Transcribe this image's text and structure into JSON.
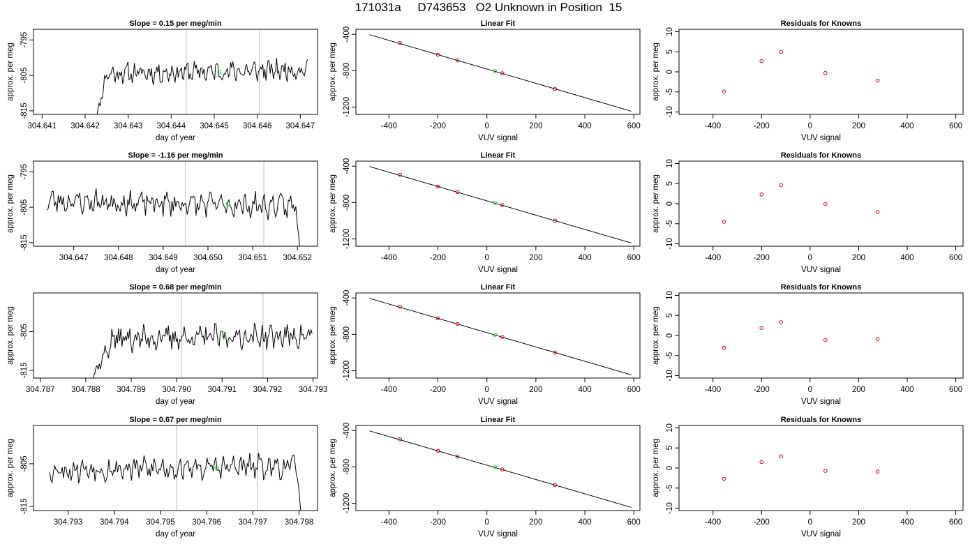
{
  "title": "171031a     D743653   O2 Unknown in Position  15",
  "colors": {
    "trace": "#000000",
    "marker": "#00dd00",
    "known": "#dd0000",
    "vline": "#c8c8c8",
    "fit": "#000000"
  },
  "chart_data": [
    {
      "type": "line",
      "panel": "time-series",
      "row": 0,
      "title": "Slope =  0.15  per meg/min",
      "xlabel": "day of year",
      "ylabel": "approx. per meg",
      "xlim": [
        304.6408,
        304.6474
      ],
      "ylim": [
        -816,
        -792
      ],
      "xticks": [
        {
          "v": 304.641,
          "label": "304.641"
        },
        {
          "v": 304.642,
          "label": "304.642"
        },
        {
          "v": 304.643,
          "label": "304.643"
        },
        {
          "v": 304.644,
          "label": "304.644"
        },
        {
          "v": 304.645,
          "label": "304.645"
        },
        {
          "v": 304.646,
          "label": "304.646"
        },
        {
          "v": 304.647,
          "label": "304.647"
        }
      ],
      "yticks": [
        {
          "v": -795,
          "label": "-795"
        },
        {
          "v": -805,
          "label": "-805"
        },
        {
          "v": -815,
          "label": "-815"
        }
      ],
      "vlines": [
        304.64435,
        304.64605
      ],
      "trace_start": 304.6422,
      "trace_end": 304.64717,
      "ramp_from": -820,
      "ramp_end": 304.6425,
      "base": -804.0,
      "amp": 2.2,
      "drift": 0.3,
      "seed": 11,
      "marker": {
        "x": 304.64512,
        "y": -804.1
      }
    },
    {
      "type": "scatter",
      "panel": "linear-fit",
      "row": 0,
      "title": "Linear Fit",
      "xlabel": "VUV signal",
      "ylabel": "approx. per meg",
      "xlim": [
        -535,
        625
      ],
      "ylim": [
        -1280,
        -345
      ],
      "xticks": [
        {
          "v": -400,
          "label": "-400"
        },
        {
          "v": -200,
          "label": "-200"
        },
        {
          "v": 0,
          "label": "0"
        },
        {
          "v": 200,
          "label": "200"
        },
        {
          "v": 400,
          "label": "400"
        },
        {
          "v": 600,
          "label": "600"
        }
      ],
      "yticks": [
        {
          "v": -400,
          "label": "-400"
        },
        {
          "v": -800,
          "label": "-800"
        },
        {
          "v": -1200,
          "label": "-1200"
        }
      ],
      "fit": {
        "x1": -480,
        "y1": -404,
        "x2": 590,
        "y2": -1245
      },
      "knowns": [
        {
          "x": -355,
          "y": -496
        },
        {
          "x": -200,
          "y": -624
        },
        {
          "x": -120,
          "y": -686
        },
        {
          "x": 63,
          "y": -828
        },
        {
          "x": 278,
          "y": -1000
        }
      ],
      "unknown": {
        "x": 33,
        "y": -805
      }
    },
    {
      "type": "scatter",
      "panel": "residuals",
      "row": 0,
      "title": "Residuals for Knowns",
      "xlabel": "VUV signal",
      "ylabel": "approx. per meg",
      "xlim": [
        -540,
        630
      ],
      "ylim": [
        -10.6,
        10.6
      ],
      "xticks": [
        {
          "v": -400,
          "label": "-400"
        },
        {
          "v": -200,
          "label": "-200"
        },
        {
          "v": 0,
          "label": "0"
        },
        {
          "v": 200,
          "label": "200"
        },
        {
          "v": 400,
          "label": "400"
        },
        {
          "v": 600,
          "label": "600"
        }
      ],
      "yticks": [
        {
          "v": -10,
          "label": "-10"
        },
        {
          "v": -5,
          "label": "-5"
        },
        {
          "v": 0,
          "label": "0"
        },
        {
          "v": 5,
          "label": "5"
        },
        {
          "v": 10,
          "label": "10"
        }
      ],
      "points": [
        {
          "x": -355,
          "y": -4.9
        },
        {
          "x": -200,
          "y": 2.7
        },
        {
          "x": -120,
          "y": 5.0
        },
        {
          "x": 63,
          "y": -0.3
        },
        {
          "x": 278,
          "y": -2.2
        }
      ]
    },
    {
      "type": "line",
      "panel": "time-series",
      "row": 1,
      "title": "Slope =  -1.16  per meg/min",
      "xlabel": "day of year",
      "ylabel": "approx. per meg",
      "xlim": [
        304.6461,
        304.65245
      ],
      "ylim": [
        -816,
        -792
      ],
      "xticks": [
        {
          "v": 304.647,
          "label": "304.647"
        },
        {
          "v": 304.648,
          "label": "304.648"
        },
        {
          "v": 304.649,
          "label": "304.649"
        },
        {
          "v": 304.65,
          "label": "304.650"
        },
        {
          "v": 304.651,
          "label": "304.651"
        },
        {
          "v": 304.652,
          "label": "304.652"
        }
      ],
      "yticks": [
        {
          "v": -795,
          "label": "-795"
        },
        {
          "v": -805,
          "label": "-805"
        },
        {
          "v": -815,
          "label": "-815"
        }
      ],
      "vlines": [
        304.6495,
        304.65125
      ],
      "trace_start": 304.6464,
      "trace_end": 304.65205,
      "ramp_from": null,
      "tail_to": -816,
      "base": -804.0,
      "amp": 2.6,
      "drift": -0.4,
      "seed": 23,
      "marker": {
        "x": 304.65045,
        "y": -804.0
      }
    },
    {
      "type": "scatter",
      "panel": "linear-fit",
      "row": 1,
      "title": "Linear Fit",
      "xlabel": "VUV signal",
      "ylabel": "approx. per meg",
      "xlim": [
        -535,
        625
      ],
      "ylim": [
        -1280,
        -345
      ],
      "xticks": [
        {
          "v": -400,
          "label": "-400"
        },
        {
          "v": -200,
          "label": "-200"
        },
        {
          "v": 0,
          "label": "0"
        },
        {
          "v": 200,
          "label": "200"
        },
        {
          "v": 400,
          "label": "400"
        },
        {
          "v": 600,
          "label": "600"
        }
      ],
      "yticks": [
        {
          "v": -400,
          "label": "-400"
        },
        {
          "v": -800,
          "label": "-800"
        },
        {
          "v": -1200,
          "label": "-1200"
        }
      ],
      "fit": {
        "x1": -480,
        "y1": -404,
        "x2": 590,
        "y2": -1245
      },
      "knowns": [
        {
          "x": -355,
          "y": -496
        },
        {
          "x": -200,
          "y": -624
        },
        {
          "x": -120,
          "y": -686
        },
        {
          "x": 63,
          "y": -828
        },
        {
          "x": 278,
          "y": -1000
        }
      ],
      "unknown": {
        "x": 33,
        "y": -805
      }
    },
    {
      "type": "scatter",
      "panel": "residuals",
      "row": 1,
      "title": "Residuals for Knowns",
      "xlabel": "VUV signal",
      "ylabel": "approx. per meg",
      "xlim": [
        -540,
        630
      ],
      "ylim": [
        -10.6,
        10.6
      ],
      "xticks": [
        {
          "v": -400,
          "label": "-400"
        },
        {
          "v": -200,
          "label": "-200"
        },
        {
          "v": 0,
          "label": "0"
        },
        {
          "v": 200,
          "label": "200"
        },
        {
          "v": 400,
          "label": "400"
        },
        {
          "v": 600,
          "label": "600"
        }
      ],
      "yticks": [
        {
          "v": -10,
          "label": "-10"
        },
        {
          "v": -5,
          "label": "-5"
        },
        {
          "v": 0,
          "label": "0"
        },
        {
          "v": 5,
          "label": "5"
        },
        {
          "v": 10,
          "label": "10"
        }
      ],
      "points": [
        {
          "x": -355,
          "y": -4.5
        },
        {
          "x": -200,
          "y": 2.3
        },
        {
          "x": -120,
          "y": 4.6
        },
        {
          "x": 63,
          "y": -0.1
        },
        {
          "x": 278,
          "y": -2.1
        }
      ]
    },
    {
      "type": "line",
      "panel": "time-series",
      "row": 2,
      "title": "Slope =  0.68  per meg/min",
      "xlabel": "day of year",
      "ylabel": "approx. per meg",
      "xlim": [
        304.78685,
        304.7931
      ],
      "ylim": [
        -817,
        -795
      ],
      "xticks": [
        {
          "v": 304.787,
          "label": "304.787"
        },
        {
          "v": 304.788,
          "label": "304.788"
        },
        {
          "v": 304.789,
          "label": "304.789"
        },
        {
          "v": 304.79,
          "label": "304.790"
        },
        {
          "v": 304.791,
          "label": "304.791"
        },
        {
          "v": 304.792,
          "label": "304.792"
        },
        {
          "v": 304.793,
          "label": "304.793"
        }
      ],
      "yticks": [
        {
          "v": -805,
          "label": "-805"
        },
        {
          "v": -815,
          "label": "-815"
        }
      ],
      "vlines": [
        304.7901,
        304.7919
      ],
      "trace_start": 304.788,
      "trace_end": 304.79298,
      "ramp_from": -820,
      "ramp_end": 304.7886,
      "base": -806.5,
      "amp": 2.4,
      "drift": 0.2,
      "seed": 37,
      "marker": {
        "x": 304.79105,
        "y": -806.2
      }
    },
    {
      "type": "scatter",
      "panel": "linear-fit",
      "row": 2,
      "title": "Linear Fit",
      "xlabel": "VUV signal",
      "ylabel": "approx. per meg",
      "xlim": [
        -535,
        625
      ],
      "ylim": [
        -1280,
        -345
      ],
      "xticks": [
        {
          "v": -400,
          "label": "-400"
        },
        {
          "v": -200,
          "label": "-200"
        },
        {
          "v": 0,
          "label": "0"
        },
        {
          "v": 200,
          "label": "200"
        },
        {
          "v": 400,
          "label": "400"
        },
        {
          "v": 600,
          "label": "600"
        }
      ],
      "yticks": [
        {
          "v": -400,
          "label": "-400"
        },
        {
          "v": -800,
          "label": "-800"
        },
        {
          "v": -1200,
          "label": "-1200"
        }
      ],
      "fit": {
        "x1": -480,
        "y1": -404,
        "x2": 590,
        "y2": -1245
      },
      "knowns": [
        {
          "x": -355,
          "y": -496
        },
        {
          "x": -200,
          "y": -624
        },
        {
          "x": -120,
          "y": -686
        },
        {
          "x": 63,
          "y": -828
        },
        {
          "x": 278,
          "y": -1000
        }
      ],
      "unknown": {
        "x": 33,
        "y": -805
      }
    },
    {
      "type": "scatter",
      "panel": "residuals",
      "row": 2,
      "title": "Residuals for Knowns",
      "xlabel": "VUV signal",
      "ylabel": "approx. per meg",
      "xlim": [
        -540,
        630
      ],
      "ylim": [
        -10.6,
        10.6
      ],
      "xticks": [
        {
          "v": -400,
          "label": "-400"
        },
        {
          "v": -200,
          "label": "-200"
        },
        {
          "v": 0,
          "label": "0"
        },
        {
          "v": 200,
          "label": "200"
        },
        {
          "v": 400,
          "label": "400"
        },
        {
          "v": 600,
          "label": "600"
        }
      ],
      "yticks": [
        {
          "v": -10,
          "label": "-10"
        },
        {
          "v": -5,
          "label": "-5"
        },
        {
          "v": 0,
          "label": "0"
        },
        {
          "v": 5,
          "label": "5"
        },
        {
          "v": 10,
          "label": "10"
        }
      ],
      "points": [
        {
          "x": -355,
          "y": -3.0
        },
        {
          "x": -200,
          "y": 1.9
        },
        {
          "x": -120,
          "y": 3.3
        },
        {
          "x": 63,
          "y": -1.1
        },
        {
          "x": 278,
          "y": -0.9
        }
      ]
    },
    {
      "type": "line",
      "panel": "time-series",
      "row": 3,
      "title": "Slope =  0.67  per meg/min",
      "xlabel": "day of year",
      "ylabel": "approx. per meg",
      "xlim": [
        304.79225,
        304.7984
      ],
      "ylim": [
        -816,
        -796
      ],
      "xticks": [
        {
          "v": 304.793,
          "label": "304.793"
        },
        {
          "v": 304.794,
          "label": "304.794"
        },
        {
          "v": 304.795,
          "label": "304.795"
        },
        {
          "v": 304.796,
          "label": "304.796"
        },
        {
          "v": 304.797,
          "label": "304.797"
        },
        {
          "v": 304.798,
          "label": "304.798"
        }
      ],
      "yticks": [
        {
          "v": -805,
          "label": "-805"
        },
        {
          "v": -815,
          "label": "-815"
        }
      ],
      "vlines": [
        304.79535,
        304.7971
      ],
      "trace_start": 304.7926,
      "trace_end": 304.79805,
      "ramp_from": null,
      "tail_to": -818,
      "base": -806.0,
      "amp": 2.2,
      "drift": 0.2,
      "seed": 53,
      "marker": {
        "x": 304.79622,
        "y": -806.0
      }
    },
    {
      "type": "scatter",
      "panel": "linear-fit",
      "row": 3,
      "title": "Linear Fit",
      "xlabel": "VUV signal",
      "ylabel": "approx. per meg",
      "xlim": [
        -535,
        625
      ],
      "ylim": [
        -1280,
        -345
      ],
      "xticks": [
        {
          "v": -400,
          "label": "-400"
        },
        {
          "v": -200,
          "label": "-200"
        },
        {
          "v": 0,
          "label": "0"
        },
        {
          "v": 200,
          "label": "200"
        },
        {
          "v": 400,
          "label": "400"
        },
        {
          "v": 600,
          "label": "600"
        }
      ],
      "yticks": [
        {
          "v": -400,
          "label": "-400"
        },
        {
          "v": -800,
          "label": "-800"
        },
        {
          "v": -1200,
          "label": "-1200"
        }
      ],
      "fit": {
        "x1": -480,
        "y1": -404,
        "x2": 590,
        "y2": -1245
      },
      "knowns": [
        {
          "x": -355,
          "y": -496
        },
        {
          "x": -200,
          "y": -624
        },
        {
          "x": -120,
          "y": -686
        },
        {
          "x": 63,
          "y": -828
        },
        {
          "x": 278,
          "y": -1000
        }
      ],
      "unknown": {
        "x": 33,
        "y": -805
      }
    },
    {
      "type": "scatter",
      "panel": "residuals",
      "row": 3,
      "title": "Residuals for Knowns",
      "xlabel": "VUV signal",
      "ylabel": "approx. per meg",
      "xlim": [
        -540,
        630
      ],
      "ylim": [
        -10.6,
        10.6
      ],
      "xticks": [
        {
          "v": -400,
          "label": "-400"
        },
        {
          "v": -200,
          "label": "-200"
        },
        {
          "v": 0,
          "label": "0"
        },
        {
          "v": 200,
          "label": "200"
        },
        {
          "v": 400,
          "label": "400"
        },
        {
          "v": 600,
          "label": "600"
        }
      ],
      "yticks": [
        {
          "v": -10,
          "label": "-10"
        },
        {
          "v": -5,
          "label": "-5"
        },
        {
          "v": 0,
          "label": "0"
        },
        {
          "v": 5,
          "label": "5"
        },
        {
          "v": 10,
          "label": "10"
        }
      ],
      "points": [
        {
          "x": -355,
          "y": -2.7
        },
        {
          "x": -200,
          "y": 1.5
        },
        {
          "x": -120,
          "y": 2.9
        },
        {
          "x": 63,
          "y": -0.7
        },
        {
          "x": 278,
          "y": -0.9
        }
      ]
    }
  ]
}
